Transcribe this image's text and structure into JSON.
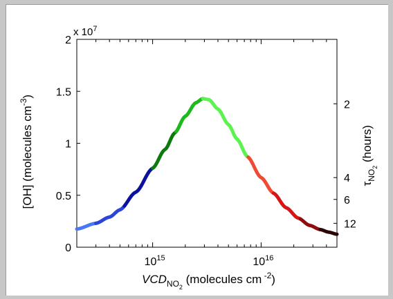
{
  "chart_data": {
    "type": "line",
    "title": "",
    "xlabel": {
      "base": "VCD",
      "subscript": "NO",
      "subsubscript": "2",
      "units": " (molecules cm",
      "units_exp": " -2",
      "units_close": ")"
    },
    "ylabel": {
      "text": "[OH] (molecules cm",
      "exp": "-3",
      "close": ")"
    },
    "y2label": {
      "base": "τ",
      "subscript": "NO",
      "subsubscript": "2",
      "units": " (hours)"
    },
    "x_scale": "log",
    "xlim": [
      200000000000000.0,
      5e+16
    ],
    "ylim": [
      0,
      20000000.0
    ],
    "y_multiplier_label": {
      "base": "x 10",
      "exp": "7"
    },
    "y_ticks": [
      {
        "value": 0,
        "label": "0"
      },
      {
        "value": 5000000.0,
        "label": "0.5"
      },
      {
        "value": 10000000.0,
        "label": "1"
      },
      {
        "value": 15000000.0,
        "label": "1.5"
      },
      {
        "value": 20000000.0,
        "label": "2"
      }
    ],
    "x_ticks": [
      {
        "value": 1000000000000000.0,
        "base": "10",
        "exp": "15"
      },
      {
        "value": 1e+16,
        "base": "10",
        "exp": "16"
      }
    ],
    "y2_ticks": [
      {
        "at_y": 13800000.0,
        "label": "2"
      },
      {
        "at_y": 6700000.0,
        "label": "4"
      },
      {
        "at_y": 4600000.0,
        "label": "6"
      },
      {
        "at_y": 2300000.0,
        "label": "12"
      }
    ],
    "grid": false,
    "legend": "none",
    "curve": {
      "x": [
        200000000000000.0,
        300000000000000.0,
        400000000000000.0,
        500000000000000.0,
        700000000000000.0,
        1000000000000000.0,
        1300000000000000.0,
        1600000000000000.0,
        2000000000000000.0,
        2500000000000000.0,
        2900000000000000.0,
        3300000000000000.0,
        4000000000000000.0,
        5000000000000000.0,
        6000000000000000.0,
        7500000000000000.0,
        1e+16,
        1.3e+16,
        1.7e+16,
        2.2e+16,
        2.8e+16,
        3.5e+16,
        4.2e+16,
        5e+16
      ],
      "y": [
        1750000.0,
        2300000.0,
        2900000.0,
        3600000.0,
        5300000.0,
        7600000.0,
        9400000.0,
        11000000.0,
        12600000.0,
        13900000.0,
        14300000.0,
        14200000.0,
        13300000.0,
        11800000.0,
        10400000.0,
        8700000.0,
        6700000.0,
        5200000.0,
        3800000.0,
        2800000.0,
        2100000.0,
        1700000.0,
        1450000.0,
        1250000.0
      ]
    },
    "segments": [
      {
        "x_start": 200000000000000.0,
        "x_end": 300000000000000.0,
        "color": "#4a78f0"
      },
      {
        "x_start": 300000000000000.0,
        "x_end": 550000000000000.0,
        "color": "#2a45d8"
      },
      {
        "x_start": 550000000000000.0,
        "x_end": 1000000000000000.0,
        "color": "#0c129e"
      },
      {
        "x_start": 1000000000000000.0,
        "x_end": 1650000000000000.0,
        "color": "#0d7a0d"
      },
      {
        "x_start": 1650000000000000.0,
        "x_end": 2900000000000000.0,
        "color": "#1cb81c"
      },
      {
        "x_start": 2900000000000000.0,
        "x_end": 7600000000000000.0,
        "color": "#5cf250"
      },
      {
        "x_start": 7600000000000000.0,
        "x_end": 1.3e+16,
        "color": "#f04a35"
      },
      {
        "x_start": 1.3e+16,
        "x_end": 2.3e+16,
        "color": "#d81414"
      },
      {
        "x_start": 2.3e+16,
        "x_end": 3.5e+16,
        "color": "#8f0d0d"
      },
      {
        "x_start": 3.5e+16,
        "x_end": 5e+16,
        "color": "#2a0606"
      }
    ]
  }
}
